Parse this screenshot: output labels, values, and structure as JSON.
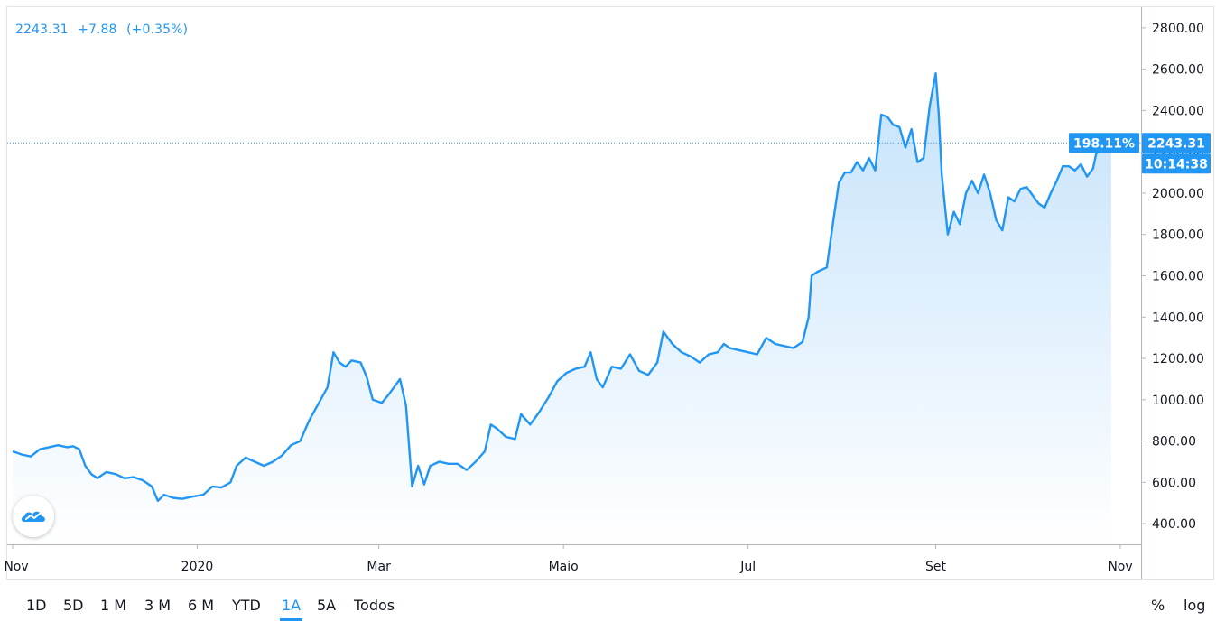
{
  "header": {
    "price": "2243.31",
    "change": "+7.88",
    "change_pct": "(+0.35%)"
  },
  "colors": {
    "line": "#2196f3",
    "area_top": "#bbdefb",
    "area_bottom": "#ffffff",
    "axis_text": "#131722",
    "border": "#e0e3eb",
    "label_bg": "#2196f3"
  },
  "labels": {
    "last_price": "2243.31",
    "countdown": "10:14:38",
    "percent": "198.11%"
  },
  "toolbar": {
    "ranges": [
      "1D",
      "5D",
      "1 M",
      "3 M",
      "6 M",
      "YTD",
      "1A",
      "5A",
      "Todos"
    ],
    "active_range": "1A",
    "percent_toggle": "%",
    "log_toggle": "log"
  },
  "chart_data": {
    "type": "area",
    "ylim": [
      300,
      2900
    ],
    "y_ticks": [
      400,
      600,
      800,
      1000,
      1200,
      1400,
      1600,
      1800,
      2000,
      2200,
      2400,
      2600,
      2800
    ],
    "y_tick_labels": [
      "400.00",
      "600.00",
      "800.00",
      "1000.00",
      "1200.00",
      "1400.00",
      "1600.00",
      "1800.00",
      "2000.00",
      "2200.00",
      "2400.00",
      "2600.00",
      "2800.00"
    ],
    "x_range": [
      "2019-11-01",
      "2020-11-01"
    ],
    "x_ticks": [
      {
        "label": "Nov",
        "date": "2019-11-01"
      },
      {
        "label": "2020",
        "date": "2020-01-01"
      },
      {
        "label": "Mar",
        "date": "2020-03-01"
      },
      {
        "label": "Maio",
        "date": "2020-05-01"
      },
      {
        "label": "Jul",
        "date": "2020-07-01"
      },
      {
        "label": "Set",
        "date": "2020-09-01"
      },
      {
        "label": "Nov",
        "date": "2020-11-01"
      }
    ],
    "last_value": 2243.31,
    "series": [
      {
        "points": [
          [
            "2019-11-01",
            750
          ],
          [
            "2019-11-04",
            735
          ],
          [
            "2019-11-07",
            725
          ],
          [
            "2019-11-10",
            760
          ],
          [
            "2019-11-13",
            770
          ],
          [
            "2019-11-16",
            780
          ],
          [
            "2019-11-19",
            770
          ],
          [
            "2019-11-21",
            775
          ],
          [
            "2019-11-23",
            760
          ],
          [
            "2019-11-25",
            680
          ],
          [
            "2019-11-27",
            640
          ],
          [
            "2019-11-29",
            620
          ],
          [
            "2019-12-02",
            650
          ],
          [
            "2019-12-05",
            640
          ],
          [
            "2019-12-08",
            620
          ],
          [
            "2019-12-11",
            625
          ],
          [
            "2019-12-14",
            610
          ],
          [
            "2019-12-17",
            580
          ],
          [
            "2019-12-19",
            510
          ],
          [
            "2019-12-21",
            540
          ],
          [
            "2019-12-24",
            525
          ],
          [
            "2019-12-27",
            520
          ],
          [
            "2019-12-30",
            530
          ],
          [
            "2020-01-03",
            540
          ],
          [
            "2020-01-06",
            580
          ],
          [
            "2020-01-09",
            575
          ],
          [
            "2020-01-12",
            600
          ],
          [
            "2020-01-14",
            680
          ],
          [
            "2020-01-17",
            720
          ],
          [
            "2020-01-20",
            700
          ],
          [
            "2020-01-23",
            680
          ],
          [
            "2020-01-26",
            700
          ],
          [
            "2020-01-29",
            730
          ],
          [
            "2020-02-01",
            780
          ],
          [
            "2020-02-04",
            800
          ],
          [
            "2020-02-07",
            900
          ],
          [
            "2020-02-10",
            980
          ],
          [
            "2020-02-13",
            1060
          ],
          [
            "2020-02-15",
            1230
          ],
          [
            "2020-02-17",
            1180
          ],
          [
            "2020-02-19",
            1160
          ],
          [
            "2020-02-21",
            1190
          ],
          [
            "2020-02-24",
            1180
          ],
          [
            "2020-02-26",
            1110
          ],
          [
            "2020-02-28",
            1000
          ],
          [
            "2020-03-02",
            985
          ],
          [
            "2020-03-04",
            1020
          ],
          [
            "2020-03-06",
            1060
          ],
          [
            "2020-03-08",
            1100
          ],
          [
            "2020-03-10",
            970
          ],
          [
            "2020-03-12",
            580
          ],
          [
            "2020-03-14",
            680
          ],
          [
            "2020-03-16",
            590
          ],
          [
            "2020-03-18",
            680
          ],
          [
            "2020-03-21",
            700
          ],
          [
            "2020-03-24",
            690
          ],
          [
            "2020-03-27",
            690
          ],
          [
            "2020-03-30",
            660
          ],
          [
            "2020-04-02",
            700
          ],
          [
            "2020-04-05",
            750
          ],
          [
            "2020-04-07",
            880
          ],
          [
            "2020-04-09",
            860
          ],
          [
            "2020-04-12",
            820
          ],
          [
            "2020-04-15",
            810
          ],
          [
            "2020-04-17",
            930
          ],
          [
            "2020-04-20",
            880
          ],
          [
            "2020-04-23",
            940
          ],
          [
            "2020-04-26",
            1010
          ],
          [
            "2020-04-29",
            1090
          ],
          [
            "2020-05-02",
            1130
          ],
          [
            "2020-05-05",
            1150
          ],
          [
            "2020-05-08",
            1160
          ],
          [
            "2020-05-10",
            1230
          ],
          [
            "2020-05-12",
            1100
          ],
          [
            "2020-05-14",
            1060
          ],
          [
            "2020-05-17",
            1160
          ],
          [
            "2020-05-20",
            1150
          ],
          [
            "2020-05-23",
            1220
          ],
          [
            "2020-05-26",
            1140
          ],
          [
            "2020-05-29",
            1120
          ],
          [
            "2020-06-01",
            1180
          ],
          [
            "2020-06-03",
            1330
          ],
          [
            "2020-06-06",
            1270
          ],
          [
            "2020-06-09",
            1230
          ],
          [
            "2020-06-12",
            1210
          ],
          [
            "2020-06-15",
            1180
          ],
          [
            "2020-06-18",
            1220
          ],
          [
            "2020-06-21",
            1230
          ],
          [
            "2020-06-23",
            1270
          ],
          [
            "2020-06-25",
            1250
          ],
          [
            "2020-06-28",
            1240
          ],
          [
            "2020-07-01",
            1230
          ],
          [
            "2020-07-04",
            1220
          ],
          [
            "2020-07-07",
            1300
          ],
          [
            "2020-07-10",
            1270
          ],
          [
            "2020-07-13",
            1260
          ],
          [
            "2020-07-16",
            1250
          ],
          [
            "2020-07-19",
            1280
          ],
          [
            "2020-07-21",
            1400
          ],
          [
            "2020-07-22",
            1600
          ],
          [
            "2020-07-24",
            1620
          ],
          [
            "2020-07-27",
            1640
          ],
          [
            "2020-07-29",
            1850
          ],
          [
            "2020-07-31",
            2050
          ],
          [
            "2020-08-02",
            2100
          ],
          [
            "2020-08-04",
            2100
          ],
          [
            "2020-08-06",
            2150
          ],
          [
            "2020-08-08",
            2110
          ],
          [
            "2020-08-10",
            2170
          ],
          [
            "2020-08-12",
            2110
          ],
          [
            "2020-08-14",
            2380
          ],
          [
            "2020-08-16",
            2370
          ],
          [
            "2020-08-18",
            2330
          ],
          [
            "2020-08-20",
            2320
          ],
          [
            "2020-08-22",
            2220
          ],
          [
            "2020-08-24",
            2310
          ],
          [
            "2020-08-26",
            2150
          ],
          [
            "2020-08-28",
            2170
          ],
          [
            "2020-08-30",
            2420
          ],
          [
            "2020-09-01",
            2580
          ],
          [
            "2020-09-02",
            2380
          ],
          [
            "2020-09-03",
            2090
          ],
          [
            "2020-09-05",
            1800
          ],
          [
            "2020-09-07",
            1910
          ],
          [
            "2020-09-09",
            1850
          ],
          [
            "2020-09-11",
            2000
          ],
          [
            "2020-09-13",
            2060
          ],
          [
            "2020-09-15",
            2000
          ],
          [
            "2020-09-17",
            2090
          ],
          [
            "2020-09-19",
            2000
          ],
          [
            "2020-09-21",
            1870
          ],
          [
            "2020-09-23",
            1820
          ],
          [
            "2020-09-25",
            1980
          ],
          [
            "2020-09-27",
            1960
          ],
          [
            "2020-09-29",
            2020
          ],
          [
            "2020-10-01",
            2030
          ],
          [
            "2020-10-03",
            1990
          ],
          [
            "2020-10-05",
            1950
          ],
          [
            "2020-10-07",
            1930
          ],
          [
            "2020-10-09",
            2000
          ],
          [
            "2020-10-11",
            2060
          ],
          [
            "2020-10-13",
            2130
          ],
          [
            "2020-10-15",
            2130
          ],
          [
            "2020-10-17",
            2110
          ],
          [
            "2020-10-19",
            2140
          ],
          [
            "2020-10-21",
            2080
          ],
          [
            "2020-10-23",
            2120
          ],
          [
            "2020-10-24",
            2190
          ],
          [
            "2020-10-26",
            2230
          ],
          [
            "2020-10-28",
            2240
          ],
          [
            "2020-10-29",
            2243.31
          ]
        ]
      }
    ]
  }
}
